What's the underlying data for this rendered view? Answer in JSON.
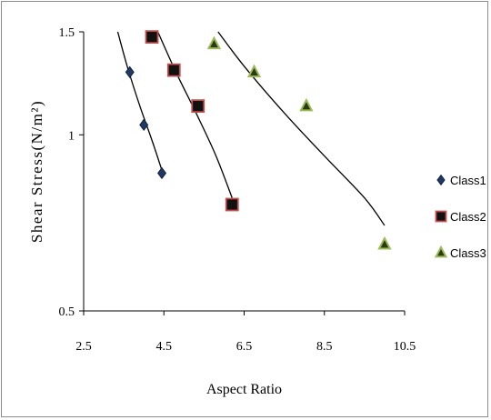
{
  "chart_data": {
    "type": "scatter",
    "xlabel": "Aspect Ratio",
    "ylabel": "Shear  Stress(N/m²)",
    "xlim": [
      2.5,
      10.5
    ],
    "ylim": [
      0.5,
      1.5
    ],
    "y_scale": "log",
    "x_ticks": [
      "2.5",
      "4.5",
      "6.5",
      "8.5",
      "10.5"
    ],
    "x_tick_values": [
      2.5,
      4.5,
      6.5,
      8.5,
      10.5
    ],
    "y_ticks": [
      "0.5",
      "1",
      "1.5"
    ],
    "y_tick_values": [
      0.5,
      1,
      1.5
    ],
    "grid": false,
    "legend_position": "right",
    "series": [
      {
        "name": "Class1",
        "marker": "diamond",
        "color": "#1f3864",
        "points": [
          [
            3.65,
            1.28
          ],
          [
            4.0,
            1.04
          ],
          [
            4.45,
            0.86
          ]
        ],
        "trend": [
          [
            3.35,
            1.5
          ],
          [
            3.6,
            1.3
          ],
          [
            3.9,
            1.12
          ],
          [
            4.2,
            0.98
          ],
          [
            4.45,
            0.87
          ]
        ]
      },
      {
        "name": "Class2",
        "marker": "square",
        "color": "#111111",
        "edge_color": "#c0504d",
        "points": [
          [
            4.2,
            1.47
          ],
          [
            4.75,
            1.29
          ],
          [
            5.35,
            1.12
          ],
          [
            6.2,
            0.76
          ]
        ],
        "trend": [
          [
            4.35,
            1.5
          ],
          [
            4.8,
            1.28
          ],
          [
            5.3,
            1.09
          ],
          [
            5.8,
            0.92
          ],
          [
            6.2,
            0.78
          ]
        ]
      },
      {
        "name": "Class3",
        "marker": "triangle",
        "color": "#2b3a12",
        "fill_color": "#9bbb59",
        "points": [
          [
            5.75,
            1.43
          ],
          [
            6.75,
            1.28
          ],
          [
            8.05,
            1.12
          ],
          [
            10.0,
            0.65
          ]
        ],
        "trend": [
          [
            5.85,
            1.5
          ],
          [
            6.5,
            1.31
          ],
          [
            7.5,
            1.09
          ],
          [
            8.5,
            0.92
          ],
          [
            9.5,
            0.78
          ],
          [
            10.0,
            0.7
          ]
        ]
      }
    ]
  }
}
